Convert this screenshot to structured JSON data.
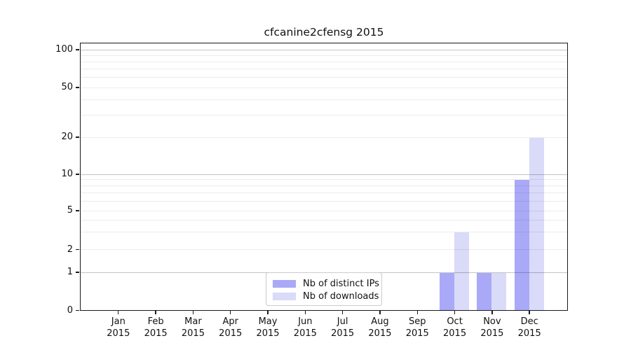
{
  "chart_data": {
    "type": "bar",
    "title": "cfcanine2cfensg 2015",
    "categories": [
      "Jan",
      "Feb",
      "Mar",
      "Apr",
      "May",
      "Jun",
      "Jul",
      "Aug",
      "Sep",
      "Oct",
      "Nov",
      "Dec"
    ],
    "x_year_label": "2015",
    "series": [
      {
        "name": "Nb of distinct IPs",
        "color": "#a9a9f7",
        "values": [
          0,
          0,
          0,
          0,
          0,
          0,
          0,
          0,
          0,
          1,
          1,
          9
        ]
      },
      {
        "name": "Nb of downloads",
        "color": "#dadaf9",
        "values": [
          0,
          0,
          0,
          0,
          0,
          0,
          0,
          0,
          0,
          3,
          1,
          20
        ]
      }
    ],
    "y_ticks": [
      0,
      1,
      2,
      5,
      10,
      20,
      50,
      100
    ],
    "y_tick_labels": [
      "0",
      "1",
      "2",
      "5",
      "10",
      "20",
      "50",
      "100"
    ],
    "y_minor_gridline_values": [
      2,
      3,
      4,
      5,
      6,
      7,
      8,
      9,
      20,
      30,
      40,
      50,
      60,
      70,
      80,
      90
    ],
    "y_major_gridline_values": [
      1,
      10,
      100
    ],
    "ylim": [
      0,
      100
    ],
    "yscale": "log-like above 1, linear 0-1",
    "grid": "horizontal, major and minor, drawn over bars",
    "legend_position": "lower center"
  }
}
